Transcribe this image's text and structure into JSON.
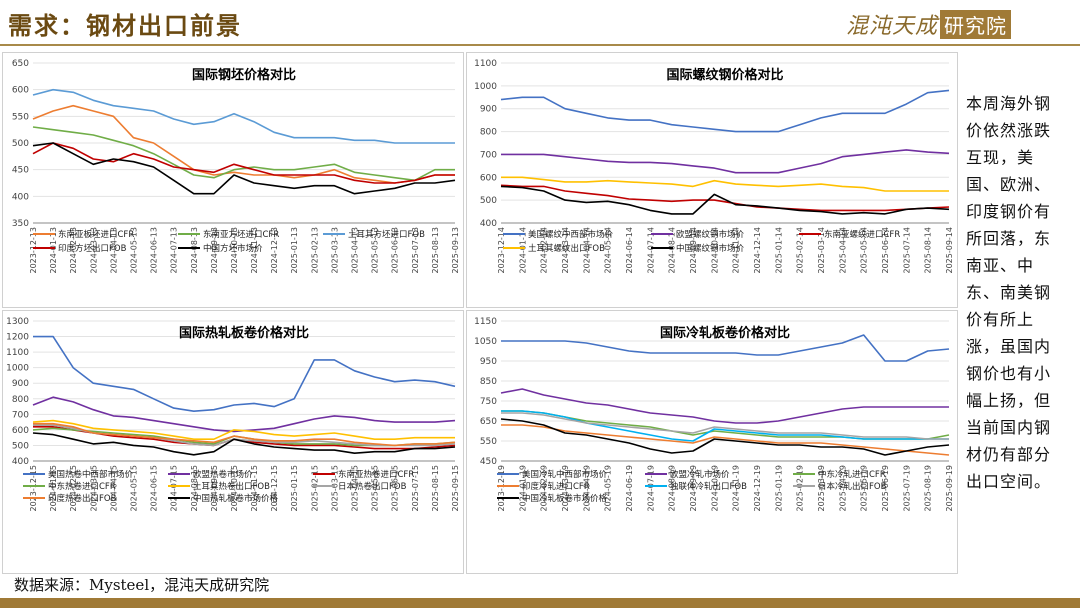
{
  "header": {
    "title": "需求：钢材出口前景",
    "logo_script": "混沌天成",
    "logo_box": "研究院"
  },
  "comment": "本周海外钢价依然涨跌互现，美国、欧洲、印度钢价有所回落，东南亚、中东、南美钢价有所上涨，虽国内钢价也有小幅上扬，但当前国内钢材仍有部分出口空间。",
  "source": "数据来源：Mysteel，混沌天成研究院",
  "chart_data": [
    {
      "id": "billet",
      "type": "line",
      "title": "国际钢坯价格对比",
      "ylim": [
        350,
        650
      ],
      "yticks": [
        350,
        400,
        450,
        500,
        550,
        600,
        650
      ],
      "xticks": [
        "2023-12-13",
        "2024-01-13",
        "2024-02-13",
        "2024-03-13",
        "2024-04-13",
        "2024-05-13",
        "2024-06-13",
        "2024-07-13",
        "2024-08-13",
        "2024-09-13",
        "2024-10-13",
        "2024-11-13",
        "2024-12-13",
        "2025-01-13",
        "2025-02-13",
        "2025-03-13",
        "2025-04-13",
        "2025-05-13",
        "2025-06-13",
        "2025-07-13",
        "2025-08-13",
        "2025-09-13"
      ],
      "series": [
        {
          "name": "东南亚板坯进口CFR",
          "color": "#ed7d31",
          "values": [
            545,
            560,
            570,
            560,
            550,
            510,
            500,
            475,
            450,
            440,
            445,
            440,
            440,
            435,
            440,
            450,
            435,
            430,
            425,
            430,
            440,
            440
          ]
        },
        {
          "name": "东南亚方坯进口CFR",
          "color": "#70ad47",
          "values": [
            530,
            525,
            520,
            515,
            505,
            495,
            480,
            460,
            440,
            435,
            450,
            455,
            450,
            450,
            455,
            460,
            445,
            440,
            435,
            430,
            450,
            450
          ]
        },
        {
          "name": "土耳其方坯进口FOB",
          "color": "#5b9bd5",
          "values": [
            590,
            600,
            595,
            580,
            570,
            565,
            560,
            545,
            535,
            540,
            555,
            540,
            520,
            510,
            510,
            510,
            505,
            505,
            500,
            500,
            500,
            500
          ]
        },
        {
          "name": "印度方坯出口FOB",
          "color": "#c00000",
          "values": [
            480,
            500,
            490,
            470,
            465,
            480,
            470,
            455,
            450,
            445,
            460,
            450,
            440,
            440,
            440,
            440,
            430,
            425,
            425,
            430,
            440,
            440
          ]
        },
        {
          "name": "中国方坯市场价",
          "color": "#000000",
          "values": [
            495,
            500,
            480,
            460,
            470,
            465,
            455,
            430,
            405,
            405,
            440,
            425,
            420,
            415,
            420,
            420,
            405,
            410,
            415,
            425,
            425,
            430
          ]
        }
      ]
    },
    {
      "id": "rebar",
      "type": "line",
      "title": "国际螺纹钢价格对比",
      "ylim": [
        400,
        1100
      ],
      "yticks": [
        400,
        500,
        600,
        700,
        800,
        900,
        1000,
        1100
      ],
      "xticks": [
        "2023-12-14",
        "2024-01-14",
        "2024-02-14",
        "2024-03-14",
        "2024-04-14",
        "2024-05-14",
        "2024-06-14",
        "2024-07-14",
        "2024-08-14",
        "2024-09-14",
        "2024-10-14",
        "2024-11-14",
        "2024-12-14",
        "2025-01-14",
        "2025-02-14",
        "2025-03-14",
        "2025-04-14",
        "2025-05-14",
        "2025-06-14",
        "2025-07-14",
        "2025-08-14",
        "2025-09-14"
      ],
      "series": [
        {
          "name": "美国螺纹中西部市场价",
          "color": "#4472c4",
          "values": [
            940,
            950,
            950,
            900,
            880,
            860,
            850,
            850,
            830,
            820,
            810,
            800,
            800,
            800,
            830,
            860,
            880,
            880,
            880,
            920,
            970,
            980
          ]
        },
        {
          "name": "欧盟螺纹钢市场价",
          "color": "#7030a0",
          "values": [
            700,
            700,
            700,
            690,
            680,
            670,
            665,
            665,
            660,
            650,
            640,
            620,
            620,
            620,
            640,
            660,
            690,
            700,
            710,
            720,
            710,
            705
          ]
        },
        {
          "name": "东南亚螺纹进口CFR",
          "color": "#c00000",
          "values": [
            565,
            560,
            560,
            540,
            530,
            520,
            505,
            500,
            495,
            500,
            500,
            485,
            470,
            465,
            460,
            455,
            455,
            455,
            455,
            460,
            465,
            470
          ]
        },
        {
          "name": "土耳其螺纹出口FOB",
          "color": "#ffc000",
          "values": [
            600,
            600,
            590,
            580,
            580,
            585,
            580,
            575,
            570,
            560,
            585,
            570,
            565,
            560,
            565,
            570,
            560,
            555,
            540,
            540,
            540,
            540
          ]
        },
        {
          "name": "中国螺纹钢市场价",
          "color": "#000000",
          "values": [
            560,
            555,
            540,
            500,
            490,
            495,
            480,
            455,
            440,
            440,
            525,
            480,
            475,
            465,
            455,
            450,
            440,
            445,
            440,
            460,
            465,
            460
          ]
        }
      ]
    },
    {
      "id": "hrc",
      "type": "line",
      "title": "国际热轧板卷价格对比",
      "ylim": [
        400,
        1300
      ],
      "yticks": [
        400,
        500,
        600,
        700,
        800,
        900,
        1000,
        1100,
        1200,
        1300
      ],
      "xticks": [
        "2023-12-15",
        "2024-01-15",
        "2024-02-15",
        "2024-03-15",
        "2024-04-15",
        "2024-05-15",
        "2024-06-15",
        "2024-07-15",
        "2024-08-15",
        "2024-09-15",
        "2024-10-15",
        "2024-11-15",
        "2024-12-15",
        "2025-01-15",
        "2025-02-15",
        "2025-03-15",
        "2025-04-15",
        "2025-05-15",
        "2025-06-15",
        "2025-07-15",
        "2025-08-15",
        "2025-09-15"
      ],
      "series": [
        {
          "name": "美国热卷中西部市场价",
          "color": "#4472c4",
          "values": [
            1200,
            1200,
            1000,
            900,
            880,
            860,
            800,
            740,
            720,
            730,
            760,
            770,
            750,
            800,
            1050,
            1050,
            980,
            940,
            910,
            920,
            910,
            880
          ]
        },
        {
          "name": "欧盟热卷市场价",
          "color": "#7030a0",
          "values": [
            760,
            810,
            780,
            730,
            690,
            680,
            660,
            640,
            620,
            600,
            590,
            600,
            610,
            640,
            670,
            690,
            680,
            660,
            650,
            650,
            650,
            660
          ]
        },
        {
          "name": "东南亚热卷进口CFR",
          "color": "#c00000",
          "values": [
            620,
            620,
            600,
            580,
            560,
            550,
            540,
            520,
            510,
            500,
            540,
            520,
            510,
            500,
            500,
            500,
            490,
            480,
            480,
            480,
            490,
            500
          ]
        },
        {
          "name": "中东热卷进口CFR",
          "color": "#70ad47",
          "values": [
            600,
            610,
            600,
            590,
            580,
            570,
            560,
            540,
            520,
            510,
            560,
            540,
            520,
            510,
            510,
            510,
            500,
            500,
            500,
            510,
            510,
            520
          ]
        },
        {
          "name": "土耳其热卷出口FOB",
          "color": "#ffc000",
          "values": [
            650,
            660,
            640,
            610,
            600,
            590,
            580,
            560,
            540,
            540,
            600,
            590,
            570,
            560,
            570,
            580,
            560,
            540,
            540,
            550,
            550,
            550
          ]
        },
        {
          "name": "日本热卷出口FOB",
          "color": "#a5a5a5",
          "values": [
            630,
            630,
            610,
            580,
            570,
            560,
            550,
            530,
            510,
            500,
            540,
            530,
            520,
            520,
            530,
            520,
            510,
            500,
            500,
            500,
            500,
            510
          ]
        },
        {
          "name": "印度热卷出口FOB",
          "color": "#ed7d31",
          "values": [
            640,
            640,
            620,
            580,
            570,
            560,
            550,
            540,
            530,
            520,
            560,
            540,
            530,
            530,
            540,
            540,
            520,
            510,
            500,
            510,
            510,
            520
          ]
        },
        {
          "name": "中国热轧板卷市场价格",
          "color": "#000000",
          "values": [
            580,
            570,
            540,
            510,
            520,
            500,
            490,
            460,
            440,
            460,
            540,
            510,
            490,
            480,
            470,
            470,
            450,
            460,
            460,
            480,
            480,
            490
          ]
        }
      ]
    },
    {
      "id": "crc",
      "type": "line",
      "title": "国际冷轧板卷价格对比",
      "ylim": [
        450,
        1150
      ],
      "yticks": [
        450,
        550,
        650,
        750,
        850,
        950,
        1050,
        1150
      ],
      "xticks": [
        "2023-12-19",
        "2024-01-19",
        "2024-02-19",
        "2024-03-19",
        "2024-04-19",
        "2024-05-19",
        "2024-06-19",
        "2024-07-19",
        "2024-08-19",
        "2024-09-19",
        "2024-10-19",
        "2024-11-19",
        "2024-12-19",
        "2025-01-19",
        "2025-02-19",
        "2025-03-19",
        "2025-04-19",
        "2025-05-19",
        "2025-06-19",
        "2025-07-19",
        "2025-08-19",
        "2025-09-19"
      ],
      "series": [
        {
          "name": "美国冷轧中西部市场价",
          "color": "#4472c4",
          "values": [
            1050,
            1050,
            1050,
            1050,
            1040,
            1020,
            1000,
            990,
            990,
            990,
            990,
            990,
            980,
            980,
            1000,
            1020,
            1040,
            1080,
            950,
            950,
            1000,
            1010
          ]
        },
        {
          "name": "欧盟冷轧市场价",
          "color": "#7030a0",
          "values": [
            790,
            810,
            780,
            760,
            740,
            730,
            710,
            690,
            680,
            670,
            650,
            640,
            640,
            650,
            670,
            690,
            710,
            720,
            720,
            720,
            720,
            720
          ]
        },
        {
          "name": "中东冷轧进口CFR",
          "color": "#70ad47",
          "values": [
            700,
            700,
            690,
            670,
            650,
            640,
            630,
            620,
            600,
            580,
            600,
            590,
            580,
            570,
            570,
            570,
            570,
            560,
            560,
            560,
            560,
            580
          ]
        },
        {
          "name": "印度冷轧进口CFR",
          "color": "#ed7d31",
          "values": [
            630,
            630,
            620,
            600,
            590,
            580,
            570,
            560,
            550,
            540,
            570,
            560,
            550,
            540,
            540,
            540,
            530,
            520,
            510,
            500,
            490,
            480
          ]
        },
        {
          "name": "独联体冷轧出口FOB",
          "color": "#00b0f0",
          "values": [
            700,
            700,
            690,
            670,
            640,
            620,
            600,
            580,
            560,
            550,
            610,
            600,
            590,
            580,
            580,
            580,
            570,
            560,
            560,
            560,
            560,
            560
          ]
        },
        {
          "name": "日本冷轧出口FOB",
          "color": "#a5a5a5",
          "values": [
            690,
            690,
            680,
            660,
            640,
            630,
            620,
            610,
            600,
            590,
            620,
            610,
            600,
            590,
            590,
            590,
            580,
            570,
            570,
            570,
            560,
            560
          ]
        },
        {
          "name": "中国冷轧板卷市场价格",
          "color": "#000000",
          "values": [
            660,
            650,
            630,
            590,
            580,
            560,
            540,
            510,
            490,
            500,
            560,
            550,
            540,
            530,
            530,
            520,
            520,
            510,
            480,
            500,
            520,
            530
          ]
        }
      ]
    }
  ]
}
